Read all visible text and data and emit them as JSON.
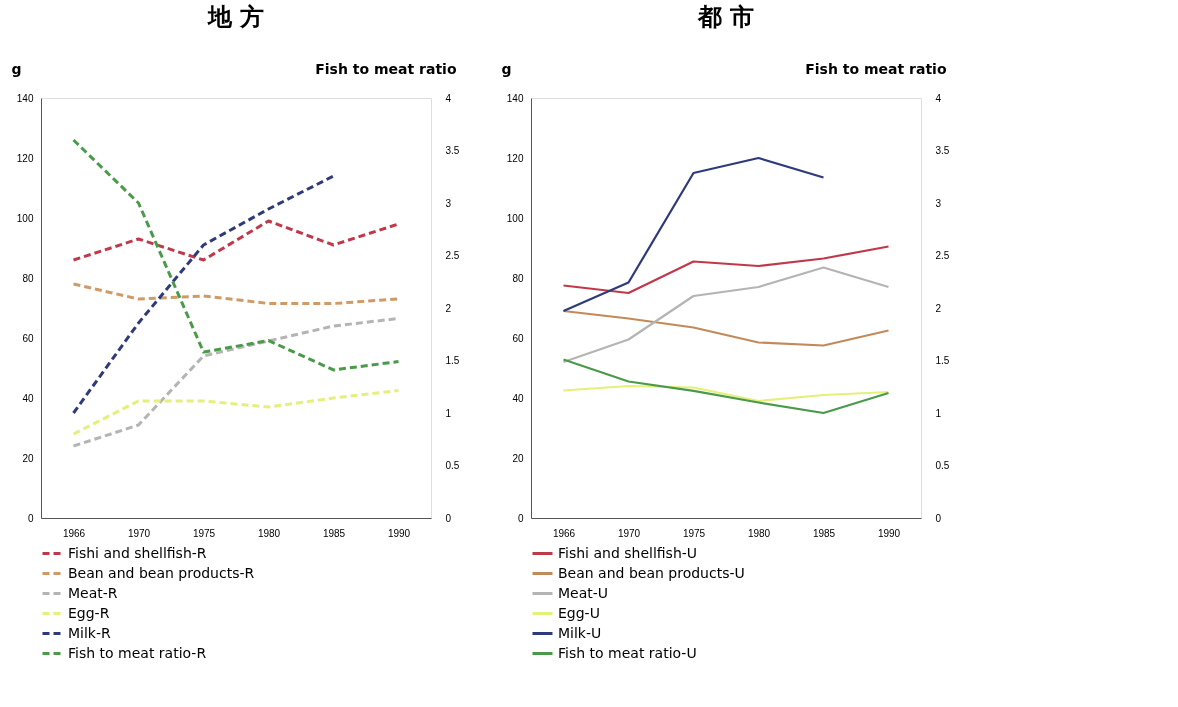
{
  "chart_data": [
    {
      "type": "line",
      "title": "地 方",
      "ylabel": "g",
      "y2label": "Fish to  meat ratio",
      "categories": [
        "1966",
        "1970",
        "1975",
        "1980",
        "1985",
        "1990"
      ],
      "ylim": [
        0,
        140
      ],
      "yticks": [
        0,
        20,
        40,
        60,
        80,
        100,
        120,
        140
      ],
      "y2lim": [
        0,
        4
      ],
      "y2ticks": [
        0,
        0.5,
        1,
        1.5,
        2,
        2.5,
        3,
        3.5,
        4
      ],
      "grid": false,
      "legend": "bottom",
      "line_style": "dashed",
      "series": [
        {
          "name": "Fishi and shellfish-R",
          "color": "#c0394b",
          "values": [
            86,
            93,
            86,
            99,
            91,
            98
          ]
        },
        {
          "name": "Bean and bean products-R",
          "color": "#d09a66",
          "values": [
            78,
            73,
            74,
            71.5,
            71.5,
            73
          ]
        },
        {
          "name": "Meat-R",
          "color": "#b4b4b4",
          "values": [
            24,
            31,
            54,
            59,
            64,
            66.5
          ]
        },
        {
          "name": "Egg-R",
          "color": "#e4f07a",
          "values": [
            28,
            39,
            39,
            37,
            40,
            42.5
          ]
        },
        {
          "name": "Milk-R",
          "color": "#2e3a7a",
          "values": [
            35,
            65,
            91,
            103,
            114,
            null
          ]
        },
        {
          "name": "Fish to meat ratio-R",
          "color": "#4a9a4a",
          "axis": "y2",
          "values": [
            3.6,
            3.0,
            1.58,
            1.69,
            1.41,
            1.49
          ]
        }
      ]
    },
    {
      "type": "line",
      "title": "都 市",
      "ylabel": "g",
      "y2label": "Fish to  meat ratio",
      "categories": [
        "1966",
        "1970",
        "1975",
        "1980",
        "1985",
        "1990"
      ],
      "ylim": [
        0,
        140
      ],
      "yticks": [
        0,
        20,
        40,
        60,
        80,
        100,
        120,
        140
      ],
      "y2lim": [
        0,
        4
      ],
      "y2ticks": [
        0,
        0.5,
        1,
        1.5,
        2,
        2.5,
        3,
        3.5,
        4
      ],
      "grid": false,
      "legend": "bottom",
      "line_style": "solid",
      "series": [
        {
          "name": "Fishi and shellfish-U",
          "color": "#c0394b",
          "values": [
            77.5,
            75,
            85.5,
            84,
            86.5,
            90.5
          ]
        },
        {
          "name": "Bean and bean products-U",
          "color": "#c28a5a",
          "values": [
            69,
            66.5,
            63.5,
            58.5,
            57.5,
            62.5
          ]
        },
        {
          "name": "Meat-U",
          "color": "#b4b4b4",
          "values": [
            52,
            59.5,
            74,
            77,
            83.5,
            77
          ]
        },
        {
          "name": "Egg-U",
          "color": "#e4f07a",
          "values": [
            42.5,
            44,
            43.5,
            39,
            41,
            42
          ]
        },
        {
          "name": "Milk-U",
          "color": "#2e3a7a",
          "values": [
            69,
            78.5,
            115,
            120,
            113.5,
            null
          ]
        },
        {
          "name": "Fish to meat ratio-U",
          "color": "#4a9a4a",
          "axis": "y2",
          "values": [
            1.51,
            1.3,
            1.21,
            1.1,
            1.0,
            1.19
          ]
        }
      ]
    }
  ]
}
